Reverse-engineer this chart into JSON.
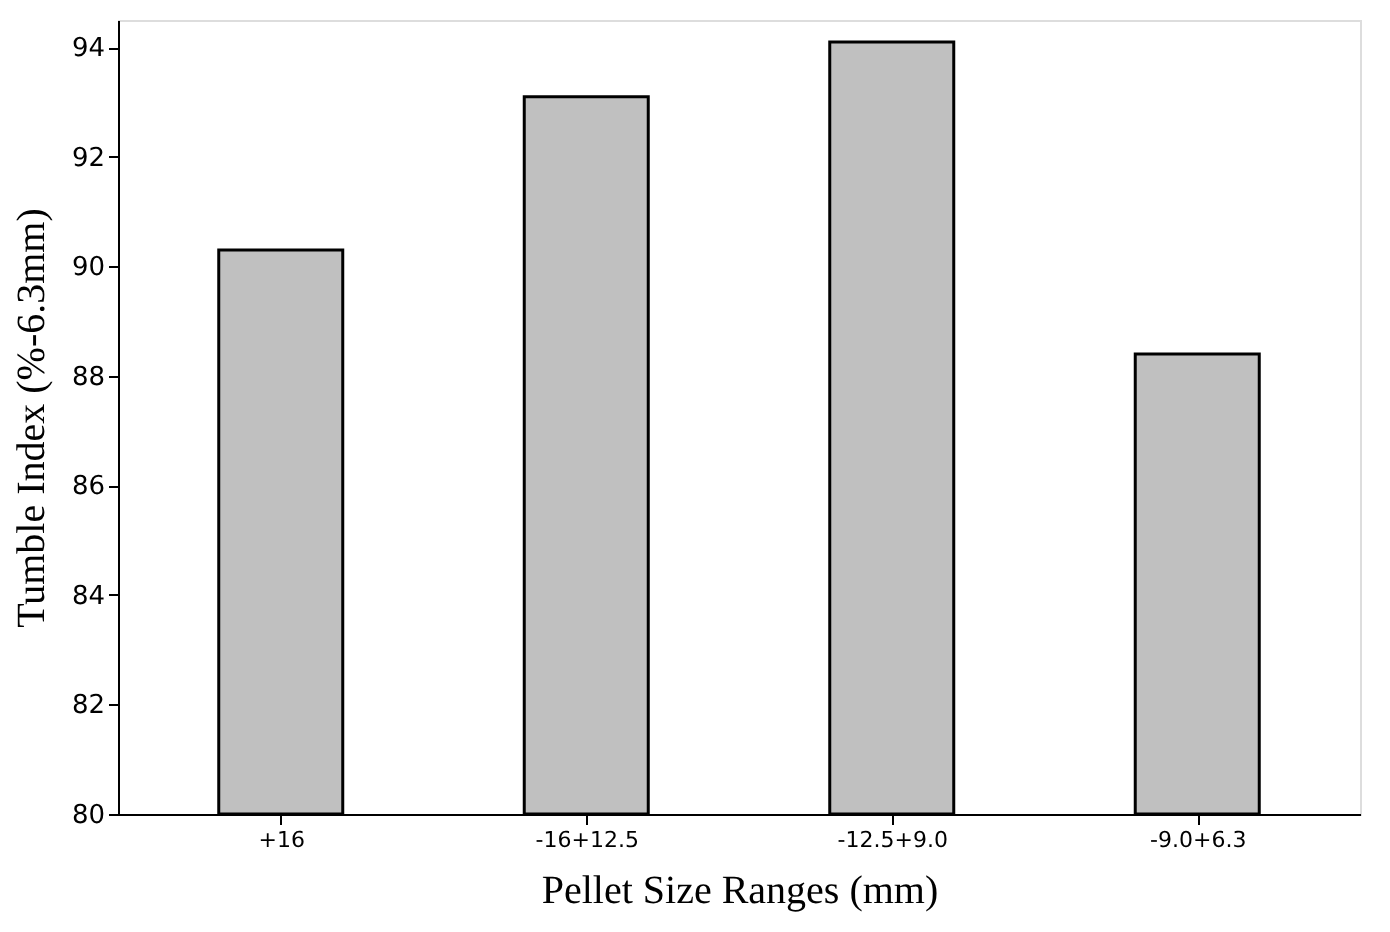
{
  "chart_data": {
    "type": "bar",
    "xlabel": "Pellet Size Ranges (mm)",
    "ylabel": "Tumble Index (%-6.3mm)",
    "categories": [
      "+16",
      "-16+12.5",
      "-12.5+9.0",
      "-9.0+6.3"
    ],
    "values": [
      90.3,
      93.1,
      94.1,
      88.4
    ],
    "color": "#c0c0c0",
    "ylim": [
      80,
      94.5
    ],
    "yticks": [
      80,
      82,
      84,
      86,
      88,
      90,
      92,
      94
    ],
    "grid": false
  }
}
